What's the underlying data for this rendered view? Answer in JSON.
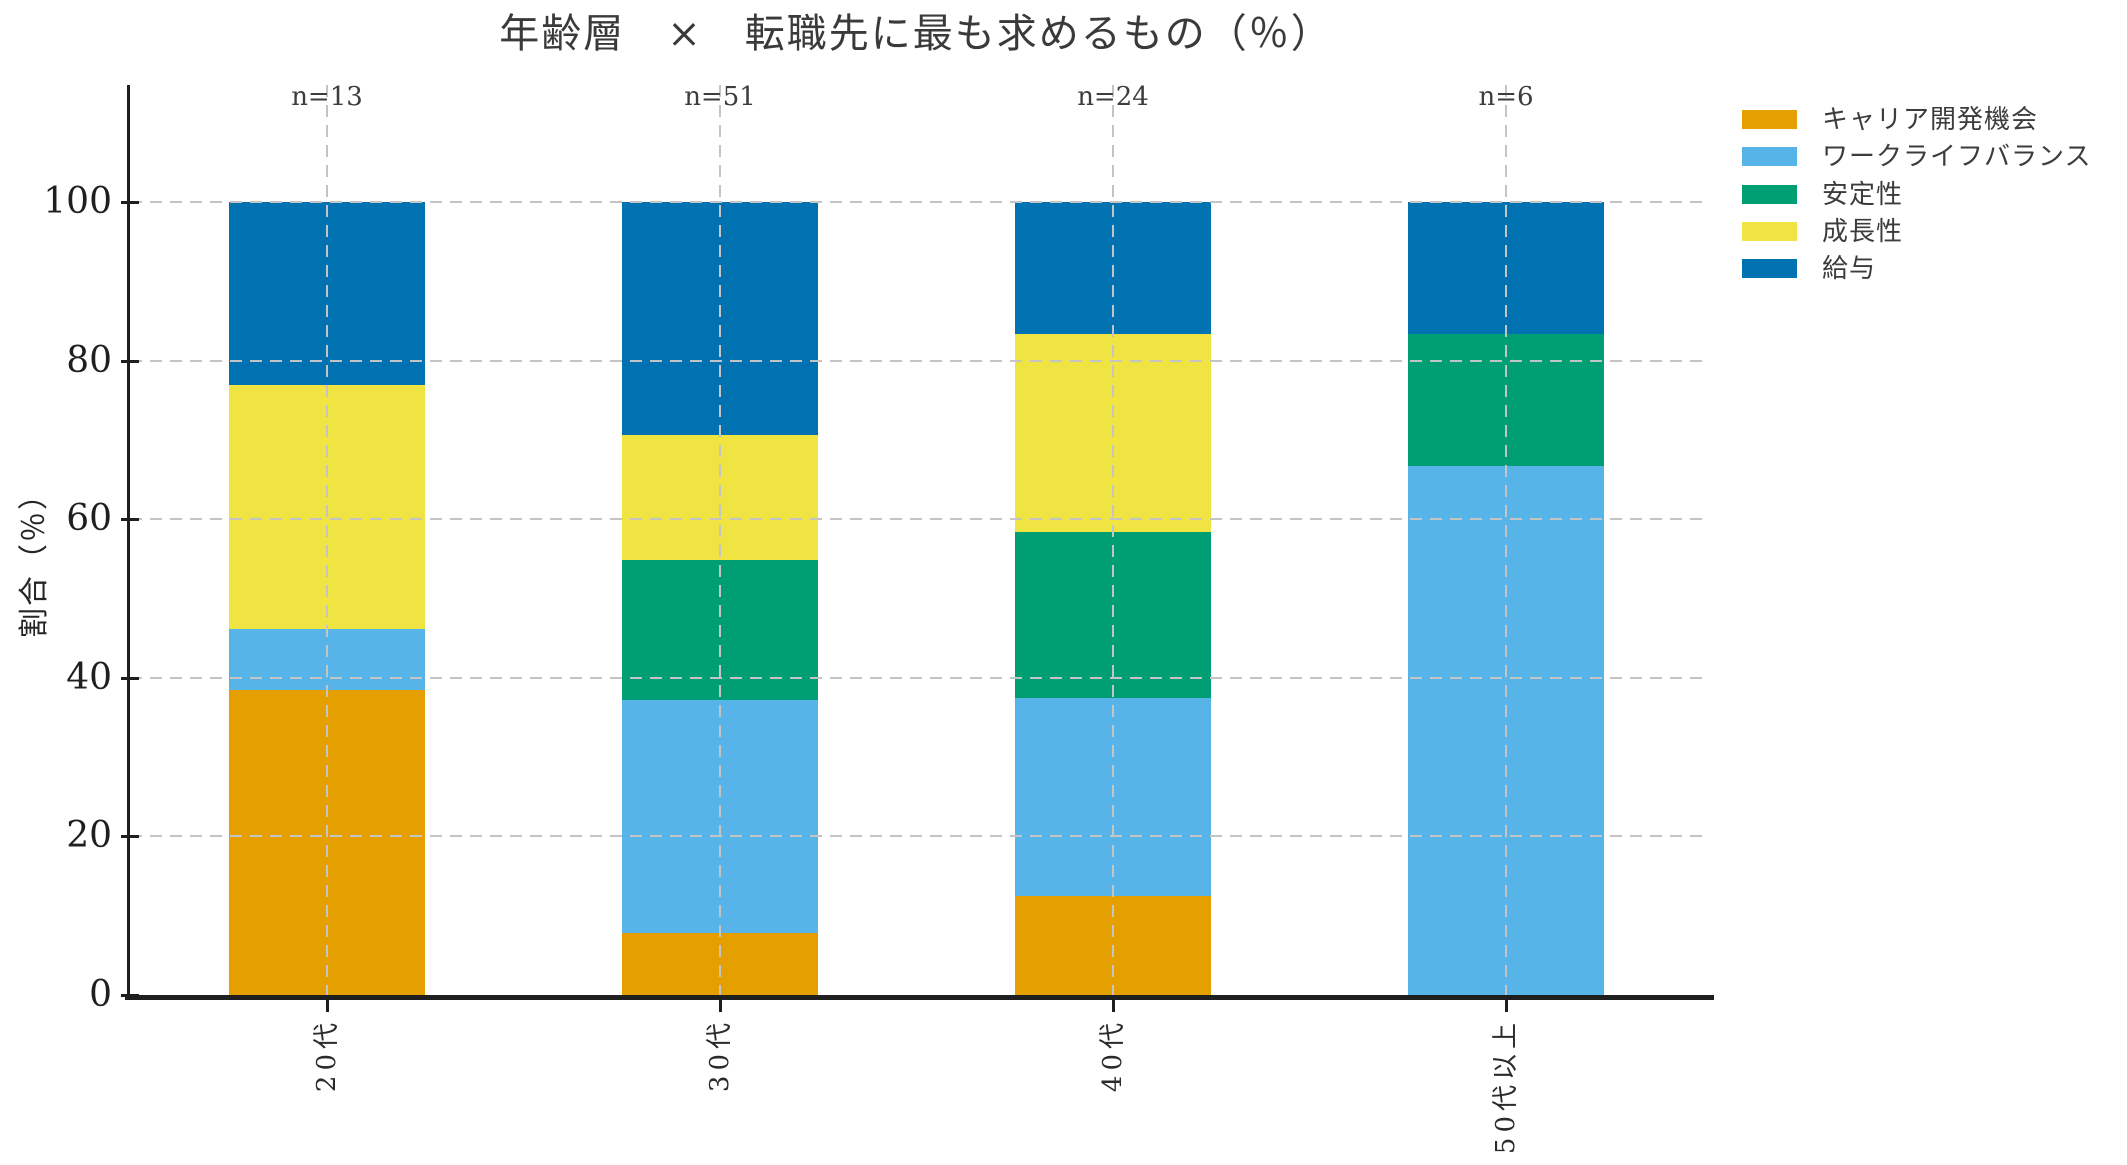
{
  "chart_data": {
    "type": "bar",
    "variant": "stacked-100-percent",
    "title": "年齢層　×　転職先に最も求めるもの（％）",
    "ylabel": "割合（％）",
    "xlabel": "",
    "categories": [
      "20代",
      "30代",
      "40代",
      "50代以上"
    ],
    "bar_annotations": [
      "n=13",
      "n=51",
      "n=24",
      "n=6"
    ],
    "yticks": [
      0,
      20,
      40,
      60,
      80,
      100
    ],
    "ylim": [
      0,
      114.8
    ],
    "grid": true,
    "grid_style": "dashed",
    "legend_position": "upper-right-outside",
    "series": [
      {
        "name": "キャリア開発機会",
        "color": "#E69F00",
        "values": [
          38.46,
          7.84,
          12.5,
          0
        ]
      },
      {
        "name": "ワークライフバランス",
        "color": "#56B4E9",
        "values": [
          7.69,
          29.41,
          25.0,
          66.67
        ]
      },
      {
        "name": "安定性",
        "color": "#009E73",
        "values": [
          0,
          17.65,
          20.83,
          16.67
        ]
      },
      {
        "name": "成長性",
        "color": "#F0E442",
        "values": [
          30.77,
          15.69,
          25.0,
          0
        ]
      },
      {
        "name": "給与",
        "color": "#0072B2",
        "values": [
          23.08,
          29.41,
          16.67,
          16.67
        ]
      }
    ]
  },
  "styles": {
    "background": "#ffffff",
    "grid_color": "#c4c4c4",
    "axis_color": "#1f1f1f",
    "tick_label_color": "#1f1f1f",
    "annotation_color": "#3d3d3d",
    "title_color": "#3a3a3a",
    "legend_text_color": "#3c3c3c"
  }
}
